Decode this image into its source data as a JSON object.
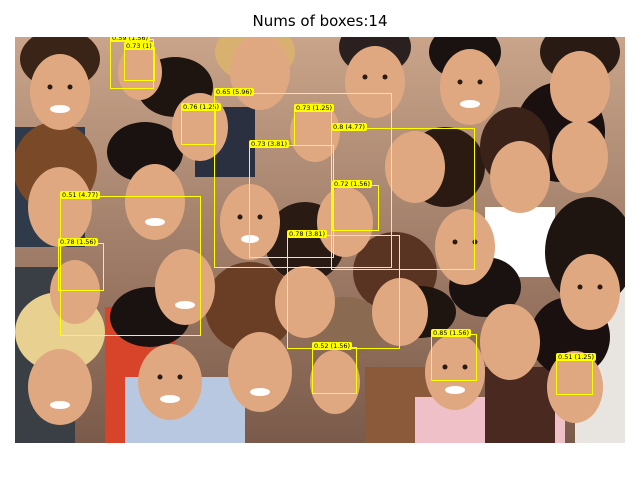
{
  "title": "Nums of boxes:14",
  "colors": {
    "box": "#ffff00",
    "label_bg": "#ffff00",
    "label_text": "#000000"
  },
  "boxes": [
    {
      "label": "0.59 (1.56)"
    },
    {
      "label": "0.73 (1)"
    },
    {
      "label": "0.76 (1.25)"
    },
    {
      "label": "0.65 (5.96)"
    },
    {
      "label": "0.73 (1.25)"
    },
    {
      "label": "0.8 (4.77)"
    },
    {
      "label": "0.73 (3.81)"
    },
    {
      "label": "0.72 (1.56)"
    },
    {
      "label": "0.51 (4.77)"
    },
    {
      "label": "0.78 (1.56)"
    },
    {
      "label": "0.78 (3.81)"
    },
    {
      "label": "0.52 (1.56)"
    },
    {
      "label": "0.85 (1.56)"
    },
    {
      "label": "0.51 (1.25)"
    }
  ]
}
